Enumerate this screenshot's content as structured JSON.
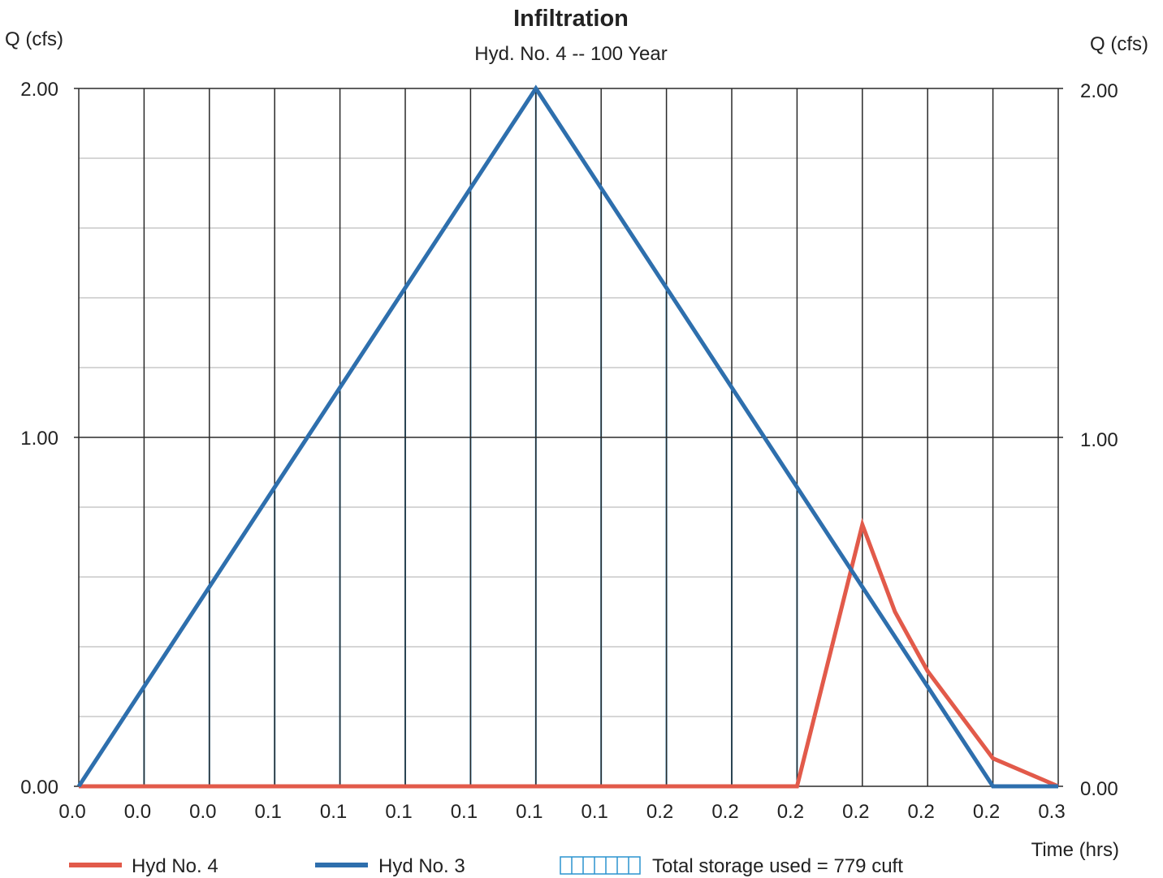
{
  "chart_data": {
    "type": "line",
    "title": "Infiltration",
    "subtitle": "Hyd. No. 4 -- 100 Year",
    "ylabel_left": "Q (cfs)",
    "ylabel_right": "Q (cfs)",
    "xlabel": "Time (hrs)",
    "ylim": [
      0,
      2
    ],
    "xlim": [
      0,
      15
    ],
    "y_ticks": [
      "0.00",
      "1.00",
      "2.00"
    ],
    "x_tick_labels": [
      "0.0",
      "0.0",
      "0.0",
      "0.1",
      "0.1",
      "0.1",
      "0.1",
      "0.1",
      "0.1",
      "0.2",
      "0.2",
      "0.2",
      "0.2",
      "0.2",
      "0.2",
      "0.3"
    ],
    "grid": true,
    "series": [
      {
        "name": "Hyd No. 4",
        "color": "#e25a4a",
        "x": [
          0,
          11,
          12,
          12.5,
          13,
          14,
          15
        ],
        "y": [
          0,
          0,
          0.75,
          0.5,
          0.33,
          0.08,
          0
        ]
      },
      {
        "name": "Hyd No. 3",
        "color": "#2e6fad",
        "x": [
          0,
          7,
          14,
          15
        ],
        "y": [
          0,
          2,
          0,
          0
        ]
      }
    ],
    "storage": {
      "label": "Total storage used = 779 cuft",
      "color": "#2a93cf",
      "x_lines": [
        1,
        2,
        3,
        4,
        5,
        6,
        7,
        8,
        9,
        10,
        11
      ]
    }
  }
}
